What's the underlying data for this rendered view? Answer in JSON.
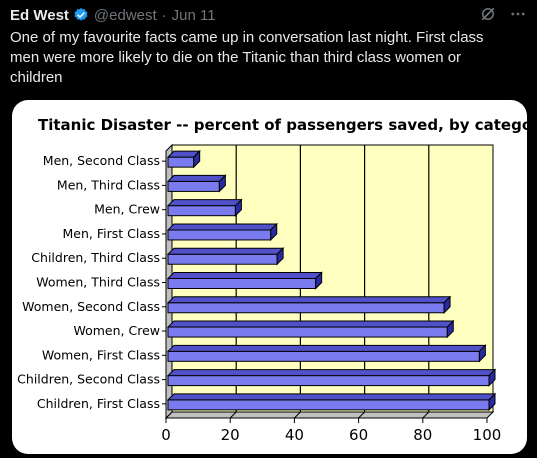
{
  "tweet": {
    "author_name": "Ed West",
    "handle": "@edwest",
    "separator": "·",
    "date": "Jun 11",
    "text": "One of my favourite facts came up in conversation last night. First class men were more likely to die on the Titanic than third class women or children",
    "more_icon": "more-icon",
    "grok_icon": "grok-icon",
    "verified_icon": "verified-badge-icon"
  },
  "colors": {
    "background": "#000000",
    "verified": "#1d9bf0",
    "plot_bg": "#ffffc0",
    "bar_front": "#7b7bf0",
    "bar_top": "#5050c8",
    "bar_side": "#2a2aa0"
  },
  "chart_data": {
    "type": "bar",
    "orientation": "horizontal",
    "title": "Titanic Disaster --  percent of passengers saved, by category",
    "categories": [
      "Men, Second Class",
      "Men, Third Class",
      "Men, Crew",
      "Men, First Class",
      "Children, Third Class",
      "Women, Third Class",
      "Women, Second Class",
      "Women, Crew",
      "Women, First Class",
      "Children, Second Class",
      "Children, First Class"
    ],
    "values": [
      8,
      16,
      21,
      32,
      34,
      46,
      86,
      87,
      97,
      100,
      100
    ],
    "xlim": [
      0,
      100
    ],
    "xticks": [
      "0",
      "20",
      "40",
      "60",
      "80",
      "100"
    ],
    "xlabel": "",
    "ylabel": "",
    "grid": true
  }
}
